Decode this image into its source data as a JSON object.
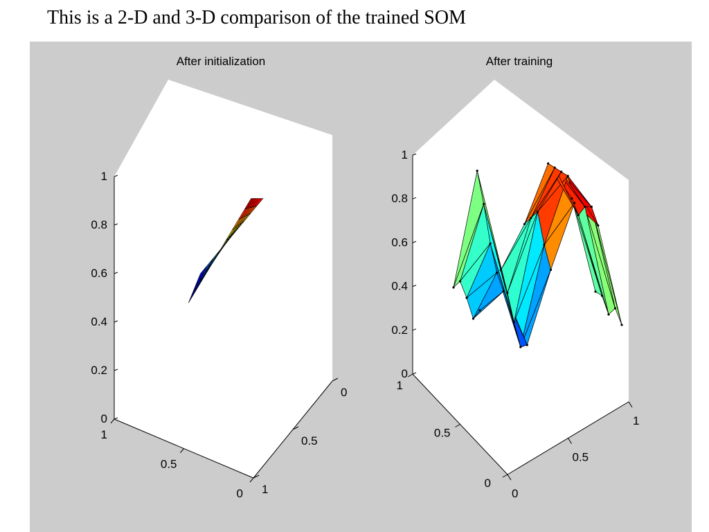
{
  "page": {
    "title": "This is a 2-D and 3-D comparison of the trained SOM"
  },
  "figure": {
    "background_color": "#cccccc",
    "pane_color": "#ffffff"
  },
  "chart_data": [
    {
      "type": "surface",
      "title": "After initialization",
      "colormap": "jet",
      "grid": false,
      "z_ticks": [
        "0",
        "0.2",
        "0.4",
        "0.6",
        "0.8",
        "1"
      ],
      "x_ticks": [
        "1",
        "0.5",
        "0"
      ],
      "y_ticks": [
        "1",
        "0.5",
        "0"
      ],
      "zlim": [
        0,
        1
      ],
      "xlim": [
        0,
        1
      ],
      "ylim": [
        0,
        1
      ],
      "surface_grid": [
        10,
        5
      ],
      "surface_corners": [
        {
          "x": 0.75,
          "y": 0.35,
          "z": 0.4
        },
        {
          "x": 0.3,
          "y": 0.5,
          "z": 0.88
        },
        {
          "x": 0.3,
          "y": 0.35,
          "z": 0.82
        },
        {
          "x": 0.75,
          "y": 0.5,
          "z": 0.34
        }
      ]
    },
    {
      "type": "surface",
      "title": "After training",
      "colormap": "jet",
      "grid": false,
      "z_ticks": [
        "0",
        "0.2",
        "0.4",
        "0.6",
        "0.8",
        "1"
      ],
      "x_ticks": [
        "1",
        "0.5",
        "0"
      ],
      "y_ticks": [
        "0",
        "0.5",
        "1"
      ],
      "zlim": [
        0,
        1
      ],
      "xlim": [
        0,
        1
      ],
      "ylim": [
        0,
        1
      ],
      "z_values": [
        [
          0.15,
          0.72,
          0.25,
          0.48,
          0.78,
          0.62,
          0.18
        ],
        [
          0.22,
          0.6,
          0.18,
          0.55,
          0.8,
          0.58,
          0.2
        ],
        [
          0.18,
          0.45,
          0.08,
          0.62,
          0.82,
          0.66,
          0.15
        ],
        [
          0.12,
          0.35,
          0.0,
          0.5,
          0.84,
          0.7,
          0.22
        ],
        [
          0.2,
          0.3,
          0.05,
          0.42,
          0.75,
          0.65,
          0.18
        ]
      ]
    }
  ]
}
